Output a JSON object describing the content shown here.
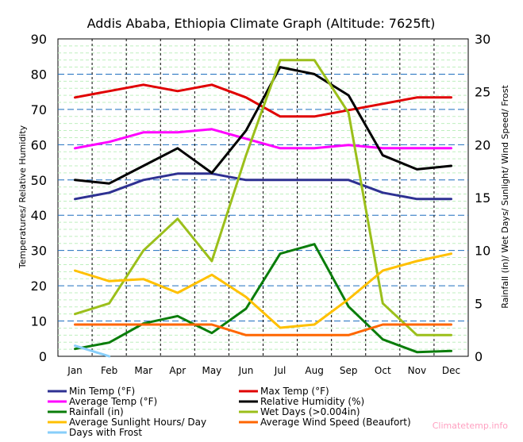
{
  "chart_data": {
    "type": "line",
    "title": "Addis Ababa, Ethiopia Climate Graph (Altitude: 7625ft)",
    "ylabel_left": "Temperatures/ Relative Humidity",
    "ylabel_right": "Rainfall (in)/ Wet Days/ Sunlight/ Wind Speed/ Frost",
    "ylim_left": [
      0,
      90
    ],
    "ylim_right": [
      0,
      30
    ],
    "yticks_left": [
      "0",
      "10",
      "20",
      "30",
      "40",
      "50",
      "60",
      "70",
      "80",
      "90"
    ],
    "yticks_right": [
      "0",
      "5",
      "10",
      "15",
      "20",
      "25",
      "30"
    ],
    "categories": [
      "Jan",
      "Feb",
      "Mar",
      "Apr",
      "May",
      "Jun",
      "Jul",
      "Aug",
      "Sep",
      "Oct",
      "Nov",
      "Dec"
    ],
    "grid": true,
    "legend_position": "bottom",
    "series": [
      {
        "name": "Min Temp (°F)",
        "axis": "left",
        "color": "#2e3192",
        "values": [
          44.6,
          46.4,
          50,
          51.8,
          51.8,
          50,
          50,
          50,
          50,
          46.4,
          44.6,
          44.6
        ]
      },
      {
        "name": "Max Temp (°F)",
        "axis": "left",
        "color": "#e00000",
        "values": [
          73.4,
          75.2,
          77,
          75.2,
          77,
          73.4,
          68,
          68,
          69.8,
          71.6,
          73.4,
          73.4
        ]
      },
      {
        "name": "Average Temp (°F)",
        "axis": "left",
        "color": "#ff00ff",
        "values": [
          59,
          60.8,
          63.5,
          63.5,
          64.4,
          61.7,
          59,
          59,
          59.9,
          59,
          59,
          59
        ]
      },
      {
        "name": "Relative Humidity (%)",
        "axis": "left",
        "color": "#000000",
        "values": [
          50,
          49,
          54,
          59,
          52,
          64,
          82,
          80,
          74,
          57,
          53,
          54
        ]
      },
      {
        "name": "Rainfall (in)",
        "axis": "right",
        "color": "#0a7d0a",
        "values": [
          0.7,
          1.3,
          3.1,
          3.8,
          2.2,
          4.5,
          9.7,
          10.6,
          4.7,
          1.6,
          0.4,
          0.5
        ]
      },
      {
        "name": "Wet Days (>0.004in)",
        "axis": "right",
        "color": "#9bbf1a",
        "values": [
          4,
          5,
          10,
          13,
          9,
          19,
          28,
          28,
          23,
          5,
          2,
          2
        ]
      },
      {
        "name": "Average Sunlight Hours/ Day",
        "axis": "right",
        "color": "#ffc000",
        "values": [
          8.1,
          7.1,
          7.3,
          6,
          7.7,
          5.6,
          2.7,
          3,
          5.4,
          8.1,
          9,
          9.7
        ]
      },
      {
        "name": "Average Wind Speed (Beaufort)",
        "axis": "right",
        "color": "#ff6600",
        "values": [
          3,
          3,
          3,
          3,
          3,
          2,
          2,
          2,
          2,
          3,
          3,
          3
        ]
      },
      {
        "name": "Days with Frost",
        "axis": "right",
        "color": "#87cefa",
        "values": [
          1,
          0,
          null,
          null,
          null,
          null,
          null,
          null,
          null,
          null,
          null,
          null
        ]
      }
    ],
    "watermark": "Climatetemp.info"
  }
}
